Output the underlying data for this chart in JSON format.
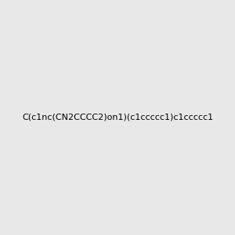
{
  "smiles": "C(c1nc(CN2CCCC2)on1)(c1ccccc1)c1ccccc1",
  "img_size": [
    300,
    300
  ],
  "background_color": "#e8e8e8",
  "title": "",
  "atom_colors": {
    "N": "#0000ff",
    "O": "#ff0000"
  }
}
